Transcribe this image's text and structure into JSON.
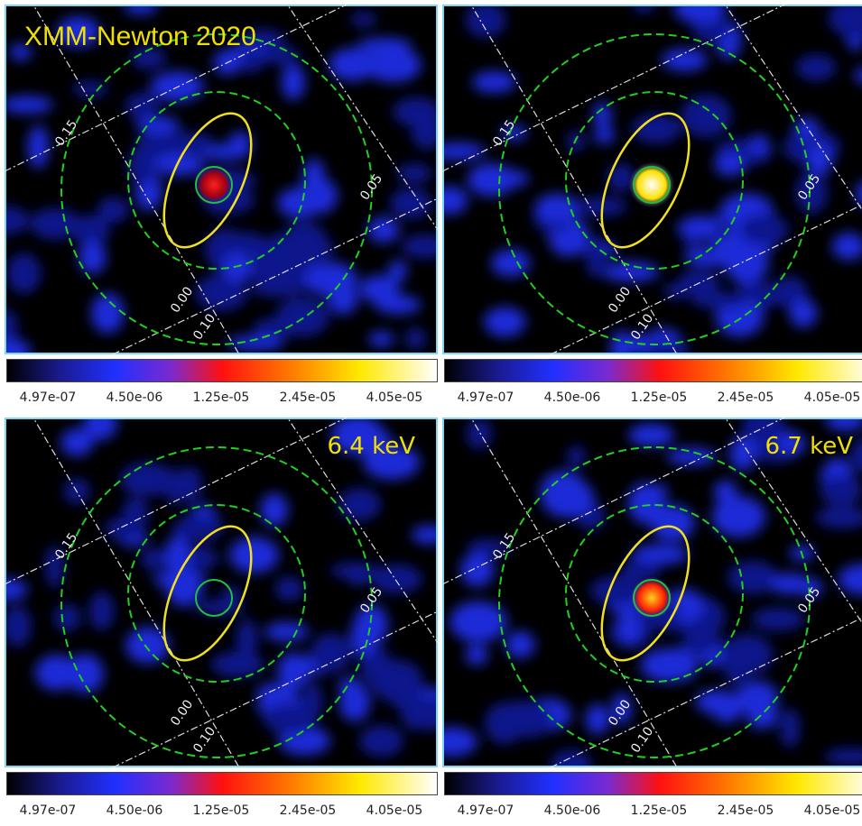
{
  "panels": [
    {
      "label": "XMM-Newton 2020",
      "grid_labels": [
        "0.15",
        "0.05",
        "0.00",
        "0.10"
      ],
      "colorbar_ticks": [
        "4.97e-07",
        "4.50e-06",
        "1.25e-05",
        "2.45e-05",
        "4.05e-05"
      ]
    },
    {
      "grid_labels": [
        "0.15",
        "0.05",
        "0.00",
        "0.10"
      ],
      "colorbar_ticks": [
        "4.97e-07",
        "4.50e-06",
        "1.25e-05",
        "2.45e-05",
        "4.05e-05"
      ]
    },
    {
      "label": "6.4 keV",
      "grid_labels": [
        "0.15",
        "0.05",
        "0.00",
        "0.10"
      ],
      "colorbar_ticks": [
        "4.97e-07",
        "4.50e-06",
        "1.25e-05",
        "2.45e-05",
        "4.05e-05"
      ]
    },
    {
      "label": "6.7 keV",
      "grid_labels": [
        "0.15",
        "0.05",
        "0.00",
        "0.10"
      ],
      "colorbar_ticks": [
        "4.97e-07",
        "4.50e-06",
        "1.25e-05",
        "2.45e-05",
        "4.05e-05"
      ]
    }
  ]
}
